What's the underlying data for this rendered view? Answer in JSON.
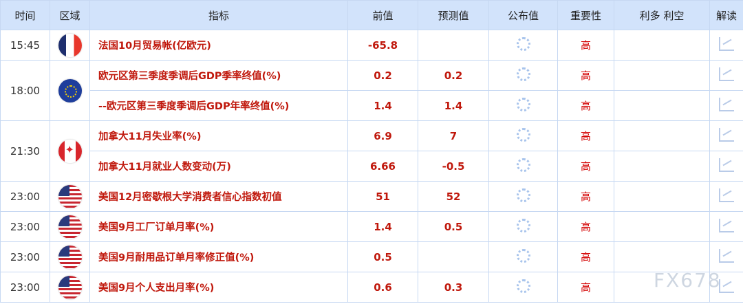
{
  "headers": [
    "时间",
    "区域",
    "指标",
    "前值",
    "预测值",
    "公布值",
    "重要性",
    "利多 利空",
    "解读"
  ],
  "groups": [
    {
      "time": "15:45",
      "flag": "fr",
      "rows": [
        {
          "name": "法国10月贸易帐(亿欧元)",
          "prev": "-65.8",
          "forecast": "",
          "importance": "高"
        }
      ]
    },
    {
      "time": "18:00",
      "flag": "eu",
      "rows": [
        {
          "name": "欧元区第三季度季调后GDP季率终值(%)",
          "prev": "0.2",
          "forecast": "0.2",
          "importance": "高"
        },
        {
          "name": "--欧元区第三季度季调后GDP年率终值(%)",
          "prev": "1.4",
          "forecast": "1.4",
          "importance": "高"
        }
      ]
    },
    {
      "time": "21:30",
      "flag": "ca",
      "rows": [
        {
          "name": "加拿大11月失业率(%)",
          "prev": "6.9",
          "forecast": "7",
          "importance": "高"
        },
        {
          "name": "加拿大11月就业人数变动(万)",
          "prev": "6.66",
          "forecast": "-0.5",
          "importance": "高"
        }
      ]
    },
    {
      "time": "23:00",
      "flag": "us",
      "rows": [
        {
          "name": "美国12月密歇根大学消费者信心指数初值",
          "prev": "51",
          "forecast": "52",
          "importance": "高"
        }
      ]
    },
    {
      "time": "23:00",
      "flag": "us",
      "rows": [
        {
          "name": "美国9月工厂订单月率(%)",
          "prev": "1.4",
          "forecast": "0.5",
          "importance": "高"
        }
      ]
    },
    {
      "time": "23:00",
      "flag": "us",
      "rows": [
        {
          "name": "美国9月耐用品订单月率修正值(%)",
          "prev": "0.5",
          "forecast": "",
          "importance": "高"
        }
      ]
    },
    {
      "time": "23:00",
      "flag": "us",
      "rows": [
        {
          "name": "美国9月个人支出月率(%)",
          "prev": "0.6",
          "forecast": "0.3",
          "importance": "高"
        }
      ]
    }
  ],
  "watermark": "FX678",
  "colors": {
    "header_bg": "#d2e3fb",
    "accent": "#c0180c",
    "border": "#c6d8f2"
  }
}
